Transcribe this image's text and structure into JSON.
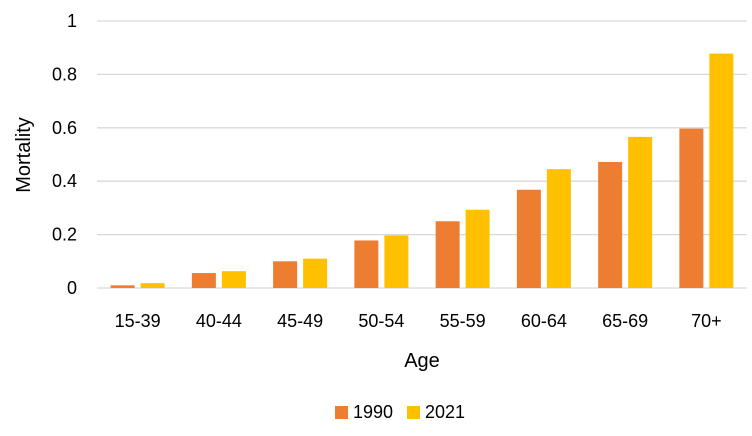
{
  "chart_data": {
    "type": "bar",
    "title": "",
    "xlabel": "Age",
    "ylabel": "Mortality",
    "categories": [
      "15-39",
      "40-44",
      "45-49",
      "50-54",
      "55-59",
      "60-64",
      "65-69",
      "70+"
    ],
    "series": [
      {
        "name": "1990",
        "color": "#ED7D31",
        "values": [
          0.01,
          0.056,
          0.1,
          0.178,
          0.25,
          0.368,
          0.472,
          0.597
        ]
      },
      {
        "name": "2021",
        "color": "#FFC000",
        "values": [
          0.018,
          0.063,
          0.11,
          0.197,
          0.293,
          0.445,
          0.566,
          0.878
        ]
      }
    ],
    "ylim": [
      0,
      1
    ],
    "yticks": [
      "0",
      "0.2",
      "0.4",
      "0.6",
      "0.8",
      "1"
    ],
    "grid": true,
    "gridline_color": "#D9D9D9",
    "legend_position": "bottom"
  }
}
